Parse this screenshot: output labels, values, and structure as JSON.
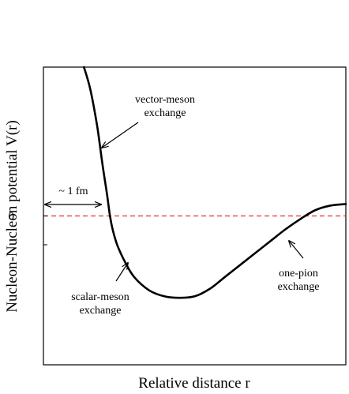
{
  "chart_data": {
    "type": "line",
    "title": "",
    "xlabel": "Relative distance r",
    "ylabel": "Nucleon-Nucleon potential V(r)",
    "y_tick_labels": [
      "0"
    ],
    "zero_line": {
      "value": 0,
      "color": "#e03030",
      "style": "dashed"
    },
    "xlim": [
      0,
      10
    ],
    "ylim": [
      -10,
      10
    ],
    "series": [
      {
        "color": "#000000",
        "x": [
          1.34,
          1.55,
          1.78,
          1.95,
          2.1,
          2.2,
          2.3,
          2.45,
          2.7,
          3.0,
          3.5,
          4.0,
          4.5,
          5.0,
          5.5,
          6.0,
          6.5,
          7.0,
          7.5,
          8.0,
          8.5,
          9.0,
          9.5,
          10.0
        ],
        "y": [
          10.0,
          8.5,
          6.0,
          3.5,
          1.5,
          0.0,
          -1.0,
          -2.0,
          -3.1,
          -4.1,
          -5.0,
          -5.4,
          -5.5,
          -5.4,
          -4.9,
          -4.1,
          -3.3,
          -2.5,
          -1.7,
          -0.9,
          -0.2,
          0.4,
          0.7,
          0.8
        ]
      }
    ],
    "annotations": [
      {
        "id": "vector",
        "lines": [
          "vector-meson",
          "exchange"
        ]
      },
      {
        "id": "scalar",
        "lines": [
          "scalar-meson",
          "exchange"
        ]
      },
      {
        "id": "pion",
        "lines": [
          "one-pion",
          "exchange"
        ]
      },
      {
        "id": "range",
        "lines": [
          "~ 1 fm"
        ]
      }
    ]
  }
}
